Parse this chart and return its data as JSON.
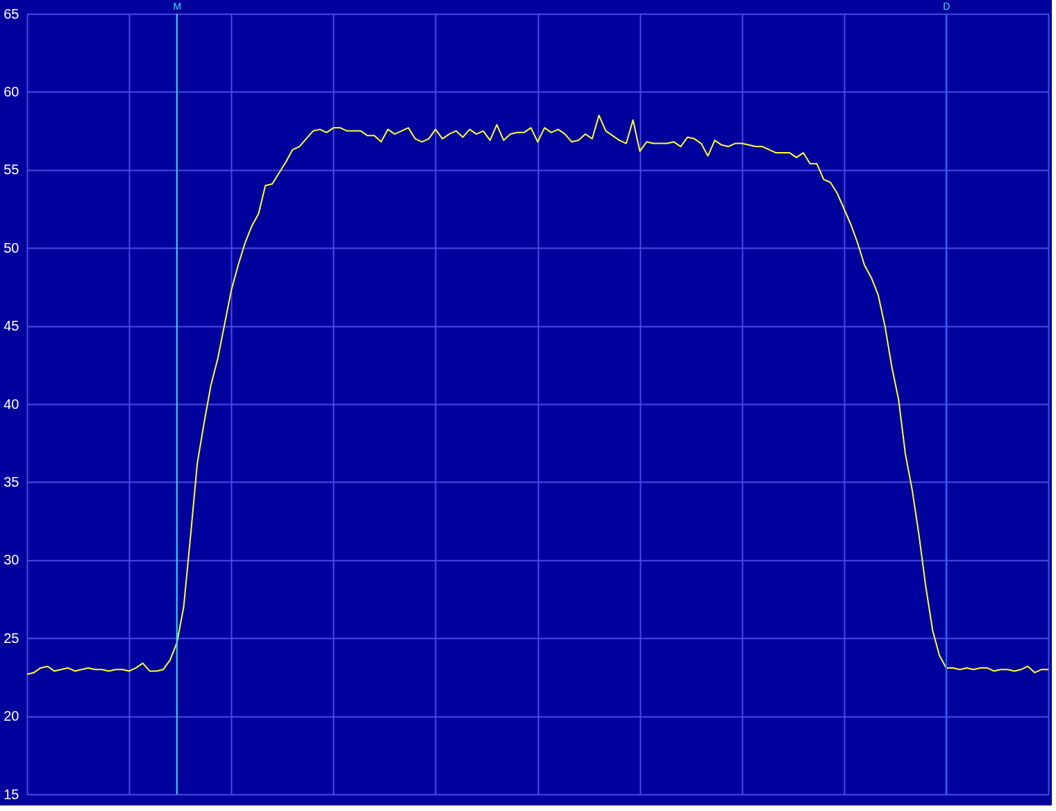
{
  "chart_data": {
    "type": "line",
    "ylim": [
      15,
      65
    ],
    "categories": [
      null,
      null,
      null,
      null,
      null,
      null,
      null,
      null,
      null,
      null,
      null,
      null,
      null,
      null,
      null,
      null,
      null,
      null,
      null,
      null,
      null,
      null,
      "M",
      null,
      null,
      null,
      null,
      null,
      null,
      null,
      null,
      null,
      null,
      null,
      null,
      null,
      null,
      null,
      null,
      null,
      null,
      null,
      null,
      null,
      null,
      null,
      null,
      null,
      null,
      null,
      null,
      null,
      null,
      null,
      null,
      null,
      null,
      null,
      null,
      null,
      null,
      null,
      null,
      null,
      null,
      null,
      null,
      null,
      null,
      null,
      null,
      null,
      null,
      null,
      null,
      null,
      null,
      null,
      null,
      null,
      null,
      null,
      null,
      null,
      null,
      null,
      null,
      null,
      null,
      null,
      null,
      null,
      null,
      null,
      null,
      null,
      null,
      null,
      null,
      null,
      null,
      null,
      null,
      null,
      null,
      null,
      null,
      null,
      null,
      null,
      null,
      null,
      null,
      null,
      null,
      null,
      null,
      null,
      null,
      null,
      null,
      null,
      null,
      null,
      null,
      null,
      null,
      null,
      null,
      null,
      null,
      null,
      null,
      null,
      null,
      "D",
      null,
      null,
      null,
      null,
      null,
      null,
      null,
      null,
      null,
      null,
      null,
      null,
      null,
      null,
      null
    ],
    "yticks": [
      15,
      20,
      25,
      30,
      35,
      40,
      45,
      50,
      55,
      60,
      65
    ],
    "grid": true,
    "line_style": "solid",
    "series": [
      {
        "color": "#ffff33",
        "values": [
          22.7,
          22.8,
          23.1,
          23.2,
          22.9,
          23.0,
          23.1,
          22.9,
          23.0,
          23.1,
          23.0,
          23.0,
          22.9,
          23.0,
          23.0,
          22.9,
          23.1,
          23.4,
          22.9,
          22.9,
          23.0,
          23.6,
          24.7,
          27.0,
          31.5,
          36.2,
          38.8,
          41.2,
          42.9,
          45.1,
          47.3,
          48.9,
          50.3,
          51.4,
          52.2,
          54.0,
          54.1,
          54.8,
          55.5,
          56.3,
          56.5,
          57.0,
          57.5,
          57.6,
          57.4,
          57.7,
          57.7,
          57.5,
          57.5,
          57.5,
          57.2,
          57.2,
          56.8,
          57.6,
          57.3,
          57.5,
          57.7,
          57.0,
          56.8,
          57.0,
          57.6,
          57.0,
          57.3,
          57.5,
          57.1,
          57.6,
          57.3,
          57.5,
          56.9,
          57.9,
          56.9,
          57.3,
          57.4,
          57.4,
          57.7,
          56.8,
          57.7,
          57.4,
          57.6,
          57.3,
          56.8,
          56.9,
          57.3,
          57.0,
          58.5,
          57.5,
          57.2,
          56.9,
          56.7,
          58.2,
          56.2,
          56.8,
          56.7,
          56.7,
          56.7,
          56.8,
          56.5,
          57.1,
          57.0,
          56.7,
          55.9,
          56.9,
          56.6,
          56.5,
          56.7,
          56.7,
          56.6,
          56.5,
          56.5,
          56.3,
          56.1,
          56.1,
          56.1,
          55.8,
          56.1,
          55.4,
          55.4,
          54.4,
          54.2,
          53.5,
          52.5,
          51.5,
          50.3,
          48.9,
          48.1,
          47.0,
          45.0,
          42.4,
          40.3,
          36.8,
          34.5,
          31.6,
          28.3,
          25.5,
          23.9,
          23.1,
          23.1,
          23.0,
          23.1,
          23.0,
          23.1,
          23.1,
          22.9,
          23.0,
          23.0,
          22.9,
          23.0,
          23.2,
          22.8,
          23.0,
          23.0
        ]
      }
    ],
    "ref_lines": [
      {
        "axis": "x",
        "value": "M",
        "color": "#33e0f0"
      },
      {
        "axis": "x",
        "value": "D",
        "color": "#1e6cff"
      }
    ]
  }
}
